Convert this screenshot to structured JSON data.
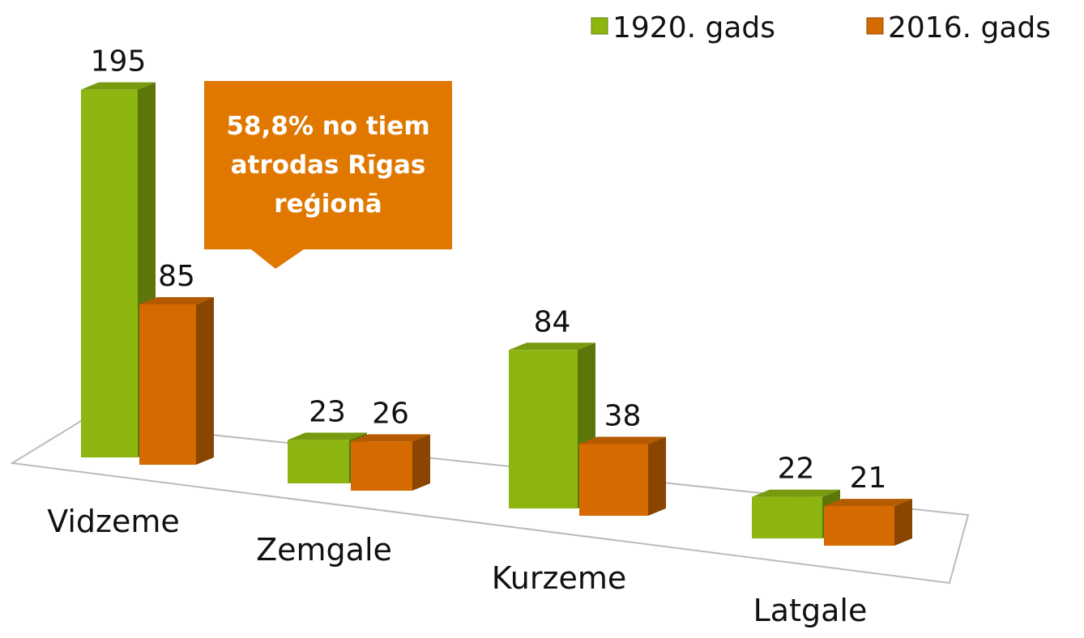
{
  "chart_data": {
    "type": "bar3d",
    "categories": [
      "Vidzeme",
      "Zemgale",
      "Kurzeme",
      "Latgale"
    ],
    "series": [
      {
        "name": "1920. gads",
        "color": "#8db510",
        "values": [
          195,
          23,
          84,
          22
        ]
      },
      {
        "name": "2016. gads",
        "color": "#d46a00",
        "values": [
          85,
          26,
          38,
          21
        ]
      }
    ],
    "annotation": "58,8% no tiem atrodas Rīgas reģionā",
    "legend": "top-right"
  }
}
